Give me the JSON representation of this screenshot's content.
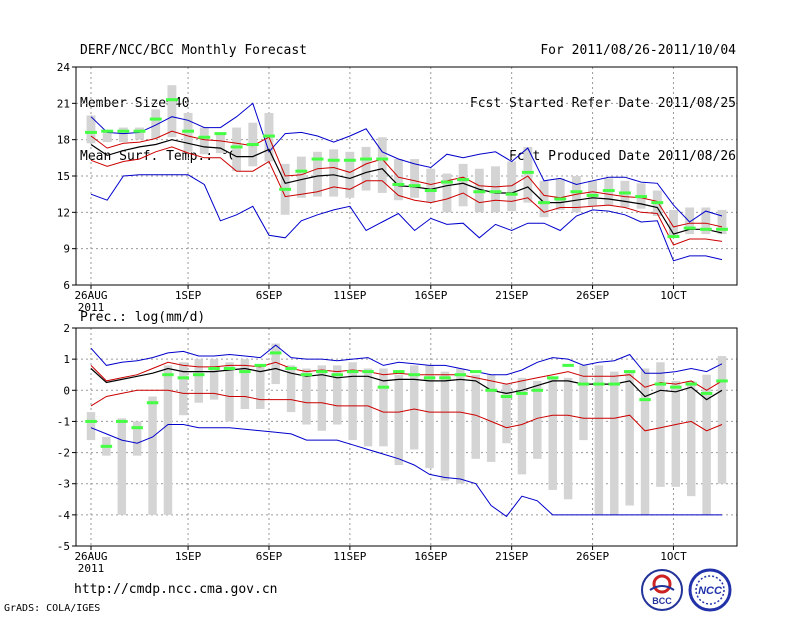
{
  "header": {
    "line1": "DERF/NCC/BCC Monthly Forecast",
    "line2": "Member Size=40",
    "line3": "Mean Surf. Temp.: °C",
    "right1": "For 2011/08/26-2011/10/04",
    "right2": "Fcst Started Refer Date 2011/08/25",
    "right3": "Fcst Produced Date 2011/08/26"
  },
  "footer": {
    "url": "http://cmdp.ncc.cma.gov.cn",
    "credit": "GrADS: COLA/IGES",
    "logo_left": "BCC",
    "logo_right": "NCC"
  },
  "colors": {
    "box": "#d4d4d4",
    "median": "#44ff44",
    "mean": "#000000",
    "sd": "#cc0000",
    "extreme": "#0000cc",
    "grid": "#9a9a9a"
  },
  "chart_data": [
    {
      "type": "box-plume",
      "title": "Mean Surf. Temp.: °C",
      "ylim": [
        6,
        24
      ],
      "yticks": [
        6,
        9,
        12,
        15,
        18,
        21,
        24
      ],
      "xlim": [
        0,
        39
      ],
      "xtick_days": [
        0,
        6,
        11,
        16,
        21,
        26,
        31,
        36
      ],
      "xtick_labels": [
        "26AUG",
        "1SEP",
        "6SEP",
        "11SEP",
        "16SEP",
        "21SEP",
        "26SEP",
        "1OCT"
      ],
      "year_label": "2011",
      "series": {
        "box_low": [
          17.7,
          17.8,
          17.8,
          18.0,
          18.1,
          18.2,
          17.0,
          16.8,
          16.9,
          15.4,
          15.8,
          16.2,
          11.8,
          13.2,
          13.3,
          13.3,
          13.2,
          13.8,
          13.6,
          13.0,
          13.2,
          12.8,
          12.0,
          12.5,
          12.0,
          12.0,
          12.1,
          12.8,
          11.6,
          12.2,
          12.0,
          12.5,
          12.6,
          12.4,
          12.3,
          11.7,
          10.0,
          10.2,
          10.2,
          10.2
        ],
        "box_high": [
          20.0,
          18.8,
          19.0,
          19.0,
          20.5,
          22.5,
          20.2,
          19.0,
          18.6,
          19.0,
          19.4,
          20.2,
          16.0,
          16.6,
          17.0,
          17.2,
          17.0,
          17.4,
          18.2,
          16.4,
          16.4,
          15.6,
          15.2,
          16.0,
          15.6,
          15.8,
          16.2,
          17.4,
          14.6,
          14.8,
          15.0,
          14.6,
          14.8,
          14.6,
          14.4,
          13.8,
          12.2,
          12.4,
          12.4,
          12.2
        ],
        "median": [
          18.6,
          18.7,
          18.7,
          18.7,
          19.7,
          21.3,
          18.7,
          18.2,
          18.5,
          17.4,
          17.6,
          18.3,
          13.9,
          15.4,
          16.4,
          16.3,
          16.3,
          16.4,
          16.4,
          14.3,
          14.2,
          13.8,
          14.5,
          14.7,
          13.7,
          13.7,
          13.5,
          15.3,
          12.8,
          13.1,
          13.7,
          13.4,
          13.8,
          13.6,
          13.3,
          12.8,
          10.0,
          10.7,
          10.6,
          10.6
        ],
        "mean": [
          17.6,
          16.7,
          17.1,
          17.4,
          17.6,
          18.0,
          17.7,
          17.4,
          17.3,
          16.6,
          16.6,
          17.2,
          14.4,
          14.7,
          15.0,
          15.1,
          14.8,
          15.3,
          15.6,
          14.2,
          14.1,
          13.9,
          14.2,
          14.4,
          13.9,
          13.6,
          13.6,
          14.1,
          12.8,
          12.8,
          13.0,
          13.2,
          13.1,
          12.9,
          12.7,
          12.4,
          10.2,
          10.6,
          10.6,
          10.3
        ],
        "sd_high": [
          18.3,
          17.3,
          17.7,
          17.8,
          18.1,
          18.7,
          18.3,
          18.0,
          17.9,
          17.7,
          17.5,
          18.2,
          15.0,
          15.1,
          15.6,
          15.7,
          15.3,
          16.0,
          16.4,
          14.9,
          14.6,
          14.3,
          14.6,
          14.9,
          14.2,
          14.1,
          14.2,
          15.0,
          13.4,
          13.2,
          13.5,
          13.7,
          13.5,
          13.3,
          13.2,
          12.9,
          10.8,
          11.1,
          11.1,
          10.8
        ],
        "sd_low": [
          16.3,
          15.8,
          16.2,
          16.4,
          17.0,
          17.4,
          16.9,
          16.5,
          16.5,
          15.4,
          15.4,
          16.2,
          13.3,
          13.5,
          13.7,
          14.1,
          13.9,
          14.6,
          14.6,
          13.4,
          13.0,
          12.8,
          13.1,
          13.6,
          12.8,
          13.0,
          12.9,
          13.2,
          12.0,
          12.4,
          12.4,
          12.5,
          12.6,
          12.4,
          12.0,
          11.9,
          9.3,
          9.8,
          9.8,
          9.6
        ],
        "max": [
          19.9,
          18.6,
          18.5,
          18.6,
          19.2,
          19.9,
          19.6,
          19.0,
          19.0,
          19.9,
          21.0,
          17.0,
          18.5,
          18.6,
          18.3,
          17.8,
          18.3,
          18.9,
          17.0,
          16.4,
          16.0,
          15.7,
          16.8,
          16.5,
          16.8,
          17.0,
          16.2,
          17.3,
          14.6,
          14.8,
          14.3,
          14.6,
          14.9,
          14.9,
          14.5,
          14.4,
          12.6,
          11.2,
          12.1,
          11.7
        ],
        "min": [
          13.5,
          13.0,
          15.0,
          15.1,
          15.1,
          15.1,
          15.1,
          14.3,
          11.3,
          11.8,
          12.5,
          10.1,
          9.9,
          11.3,
          11.8,
          12.2,
          12.5,
          10.5,
          11.2,
          11.9,
          10.5,
          11.5,
          11.0,
          11.1,
          9.9,
          11.0,
          10.5,
          11.1,
          11.1,
          10.5,
          11.7,
          12.2,
          12.1,
          11.8,
          11.2,
          11.3,
          8.0,
          8.4,
          8.4,
          8.1
        ]
      }
    },
    {
      "type": "box-plume",
      "title": "Prec.: log(mm/d)",
      "ylim": [
        -5,
        2
      ],
      "yticks": [
        -5,
        -4,
        -3,
        -2,
        -1,
        0,
        1,
        2
      ],
      "xlim": [
        0,
        39
      ],
      "xtick_days": [
        0,
        6,
        11,
        16,
        21,
        26,
        31,
        36
      ],
      "xtick_labels": [
        "26AUG",
        "1SEP",
        "6SEP",
        "11SEP",
        "16SEP",
        "21SEP",
        "26SEP",
        "1OCT"
      ],
      "year_label": "2011",
      "series": {
        "box_low": [
          -1.6,
          -2.1,
          -4.0,
          -2.1,
          -4.0,
          -4.0,
          -0.8,
          -0.4,
          -0.3,
          -1.0,
          -0.6,
          -0.6,
          0.2,
          -0.7,
          -1.1,
          -1.3,
          -1.1,
          -1.6,
          -1.8,
          -1.8,
          -2.4,
          -1.9,
          -2.5,
          -2.9,
          -3.0,
          -2.2,
          -2.3,
          -1.7,
          -2.7,
          -2.2,
          -3.2,
          -3.5,
          -1.6,
          -4.0,
          -4.0,
          -3.7,
          -4.0,
          -3.1,
          -3.1,
          -3.4,
          -4.0,
          -3.0
        ],
        "box_high": [
          -0.7,
          -1.5,
          -0.9,
          -1.0,
          -0.2,
          0.8,
          0.9,
          1.0,
          1.0,
          0.9,
          1.0,
          0.8,
          1.5,
          0.8,
          0.7,
          0.8,
          0.8,
          0.9,
          0.7,
          0.7,
          0.5,
          0.8,
          0.8,
          0.6,
          0.7,
          0.5,
          0.5,
          0.2,
          0.4,
          0.3,
          0.4,
          0.4,
          0.8,
          0.8,
          0.6,
          0.6,
          0.7,
          0.9,
          0.3,
          0.3,
          0.5,
          1.1
        ],
        "median": [
          -1.0,
          -1.8,
          -1.0,
          -1.2,
          -0.4,
          0.5,
          0.4,
          0.5,
          0.7,
          0.7,
          0.6,
          0.8,
          1.2,
          0.7,
          0.5,
          0.6,
          0.5,
          0.6,
          0.6,
          0.1,
          0.6,
          0.5,
          0.4,
          0.4,
          0.5,
          0.6,
          0.0,
          -0.2,
          -0.1,
          0.0,
          0.4,
          0.8,
          0.2,
          0.2,
          0.2,
          0.6,
          -0.3,
          0.2,
          0.1,
          0.2,
          -0.1,
          0.3
        ],
        "mean": [
          0.7,
          0.25,
          0.35,
          0.45,
          0.55,
          0.7,
          0.6,
          0.6,
          0.6,
          0.65,
          0.7,
          0.6,
          0.7,
          0.55,
          0.45,
          0.5,
          0.4,
          0.45,
          0.45,
          0.3,
          0.35,
          0.35,
          0.3,
          0.3,
          0.35,
          0.3,
          0.0,
          -0.1,
          0.0,
          0.15,
          0.3,
          0.3,
          0.2,
          0.2,
          0.2,
          0.3,
          -0.2,
          0.0,
          -0.05,
          0.1,
          -0.3,
          0.0
        ],
        "sd_high": [
          0.8,
          0.3,
          0.4,
          0.5,
          0.7,
          0.9,
          0.8,
          0.75,
          0.75,
          0.8,
          0.8,
          0.75,
          0.9,
          0.7,
          0.6,
          0.65,
          0.6,
          0.65,
          0.6,
          0.5,
          0.55,
          0.5,
          0.5,
          0.5,
          0.5,
          0.4,
          0.3,
          0.2,
          0.3,
          0.4,
          0.5,
          0.6,
          0.45,
          0.45,
          0.45,
          0.5,
          0.1,
          0.25,
          0.2,
          0.3,
          0.0,
          0.3
        ],
        "sd_low": [
          -0.5,
          -0.2,
          -0.1,
          0.0,
          0.0,
          0.0,
          -0.1,
          -0.1,
          -0.1,
          -0.2,
          -0.2,
          -0.3,
          -0.3,
          -0.3,
          -0.4,
          -0.4,
          -0.5,
          -0.5,
          -0.5,
          -0.7,
          -0.7,
          -0.6,
          -0.7,
          -0.7,
          -0.7,
          -0.8,
          -1.0,
          -1.2,
          -1.1,
          -0.9,
          -0.8,
          -0.8,
          -0.9,
          -0.9,
          -0.9,
          -0.8,
          -1.3,
          -1.2,
          -1.1,
          -1.0,
          -1.3,
          -1.1
        ],
        "max": [
          1.35,
          0.8,
          0.9,
          0.95,
          1.05,
          1.2,
          1.25,
          1.1,
          1.1,
          1.15,
          1.1,
          1.05,
          1.45,
          1.05,
          1.0,
          1.0,
          0.95,
          1.0,
          1.05,
          0.8,
          0.9,
          0.85,
          0.8,
          0.8,
          0.7,
          0.6,
          0.5,
          0.5,
          0.65,
          0.9,
          1.05,
          1.0,
          0.8,
          0.9,
          0.95,
          1.15,
          0.55,
          0.55,
          0.6,
          0.7,
          0.6,
          0.85
        ],
        "min": [
          -1.2,
          -1.4,
          -1.6,
          -1.7,
          -1.5,
          -1.1,
          -1.1,
          -1.2,
          -1.2,
          -1.2,
          -1.25,
          -1.3,
          -1.35,
          -1.4,
          -1.6,
          -1.6,
          -1.6,
          -1.75,
          -1.9,
          -2.05,
          -2.2,
          -2.4,
          -2.7,
          -2.8,
          -2.85,
          -3.0,
          -3.7,
          -4.05,
          -3.4,
          -3.55,
          -4.0,
          -4.0,
          -4.0,
          -4.0,
          -4.0,
          -4.0,
          -4.0,
          -4.0,
          -4.0,
          -4.0,
          -4.0,
          -4.0
        ]
      }
    }
  ]
}
